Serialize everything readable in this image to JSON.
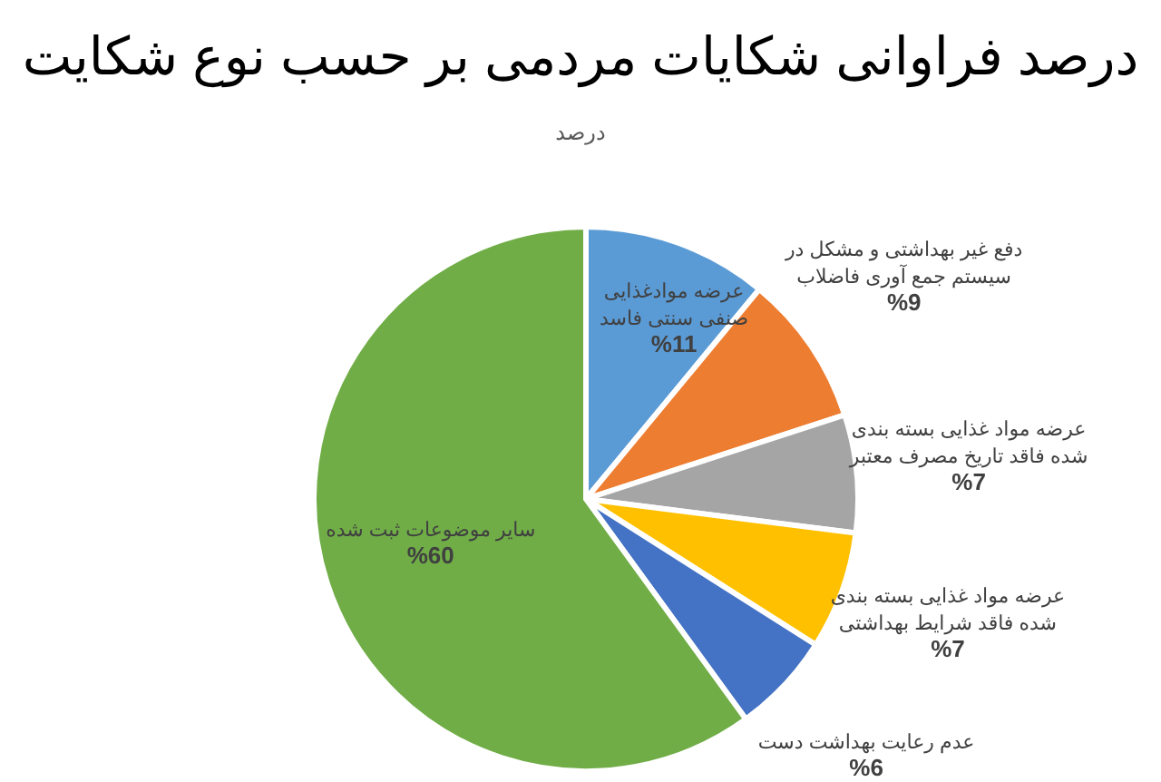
{
  "chart_data": {
    "type": "pie",
    "title": "درصد فراوانی شکایات مردمی بر حسب نوع شکایت",
    "subtitle": "درصد",
    "categories": [
      "عرضه موادغذایی صنفی سنتی فاسد",
      "دفع غیر بهداشتی و مشکل در سیستم جمع آوری فاضلاب",
      "عرضه مواد غذایی بسته بندی شده فاقد تاریخ مصرف معتبر",
      "عرضه مواد غذایی بسته بندی شده فاقد شرایط بهداشتی",
      "عدم رعایت بهداشت دست",
      "سایر موضوعات ثبت شده"
    ],
    "values": [
      11,
      9,
      7,
      7,
      6,
      60
    ],
    "value_labels": [
      "%11",
      "%9",
      "%7",
      "%7",
      "%6",
      "%60"
    ],
    "colors": [
      "#5b9bd5",
      "#ed7d31",
      "#a5a5a5",
      "#ffc000",
      "#4472c4",
      "#70ad47"
    ]
  }
}
